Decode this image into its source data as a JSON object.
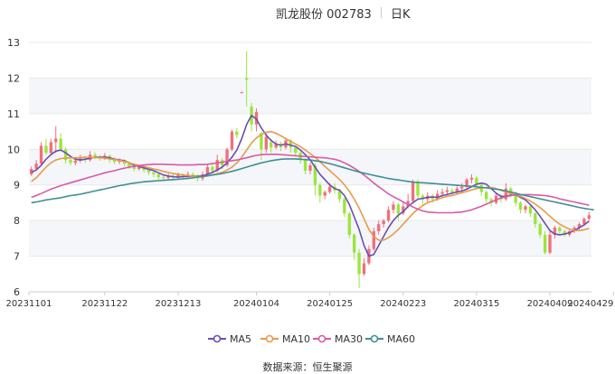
{
  "header": {
    "title": "凯龙股份 002783",
    "period": "日K"
  },
  "source": "数据来源：恒生聚源",
  "colors": {
    "up": "#f0707a",
    "down": "#9ae63c",
    "ma5": "#6a4fb0",
    "ma10": "#e89a4c",
    "ma30": "#d85aa6",
    "ma60": "#3f8f93",
    "grid": "#e8e8e8",
    "band": "#f4f6fa"
  },
  "chart_data": {
    "type": "candlestick",
    "ylim": [
      6,
      13
    ],
    "yticks": [
      6,
      7,
      8,
      9,
      10,
      11,
      12,
      13
    ],
    "xticks": [
      {
        "label": "20231101",
        "index": 0
      },
      {
        "label": "20231122",
        "index": 15
      },
      {
        "label": "20231213",
        "index": 30
      },
      {
        "label": "20240104",
        "index": 46
      },
      {
        "label": "20240125",
        "index": 61
      },
      {
        "label": "20240223",
        "index": 76
      },
      {
        "label": "20240315",
        "index": 91
      },
      {
        "label": "20240409",
        "index": 106
      },
      {
        "label": "20240429",
        "index": 119
      }
    ],
    "candles": [
      [
        9.3,
        9.45,
        9.52,
        9.25
      ],
      [
        9.45,
        9.6,
        9.7,
        9.4
      ],
      [
        9.6,
        10.1,
        10.2,
        9.55
      ],
      [
        10.1,
        9.9,
        10.3,
        9.85
      ],
      [
        9.9,
        10.2,
        10.3,
        9.85
      ],
      [
        10.2,
        10.3,
        10.65,
        9.9
      ],
      [
        10.3,
        10.0,
        10.45,
        9.95
      ],
      [
        10.0,
        9.7,
        10.05,
        9.6
      ],
      [
        9.7,
        9.62,
        9.8,
        9.55
      ],
      [
        9.62,
        9.68,
        9.75,
        9.55
      ],
      [
        9.68,
        9.75,
        9.85,
        9.62
      ],
      [
        9.75,
        9.7,
        9.82,
        9.62
      ],
      [
        9.7,
        9.85,
        9.95,
        9.65
      ],
      [
        9.85,
        9.8,
        9.92,
        9.72
      ],
      [
        9.8,
        9.75,
        9.85,
        9.68
      ],
      [
        9.75,
        9.82,
        9.9,
        9.7
      ],
      [
        9.82,
        9.72,
        9.85,
        9.62
      ],
      [
        9.72,
        9.65,
        9.78,
        9.58
      ],
      [
        9.65,
        9.7,
        9.75,
        9.58
      ],
      [
        9.7,
        9.6,
        9.72,
        9.52
      ],
      [
        9.6,
        9.5,
        9.65,
        9.45
      ],
      [
        9.5,
        9.45,
        9.55,
        9.38
      ],
      [
        9.45,
        9.5,
        9.55,
        9.4
      ],
      [
        9.5,
        9.42,
        9.55,
        9.35
      ],
      [
        9.42,
        9.35,
        9.48,
        9.28
      ],
      [
        9.35,
        9.3,
        9.4,
        9.22
      ],
      [
        9.3,
        9.22,
        9.35,
        9.15
      ],
      [
        9.22,
        9.2,
        9.28,
        9.12
      ],
      [
        9.2,
        9.25,
        9.32,
        9.15
      ],
      [
        9.25,
        9.2,
        9.3,
        9.12
      ],
      [
        9.2,
        9.28,
        9.35,
        9.15
      ],
      [
        9.28,
        9.22,
        9.32,
        9.15
      ],
      [
        9.22,
        9.3,
        9.38,
        9.18
      ],
      [
        9.3,
        9.25,
        9.35,
        9.18
      ],
      [
        9.25,
        9.18,
        9.3,
        9.1
      ],
      [
        9.18,
        9.3,
        9.38,
        9.12
      ],
      [
        9.3,
        9.5,
        9.58,
        9.25
      ],
      [
        9.5,
        9.4,
        9.58,
        9.32
      ],
      [
        9.4,
        9.7,
        9.85,
        9.35
      ],
      [
        9.7,
        9.55,
        9.75,
        9.45
      ],
      [
        9.55,
        10.0,
        10.05,
        9.5
      ],
      [
        10.0,
        10.5,
        10.55,
        9.95
      ],
      [
        10.5,
        10.4,
        10.6,
        10.3
      ],
      [
        11.6,
        11.6,
        11.62,
        11.58
      ],
      [
        12.0,
        11.95,
        12.75,
        11.2
      ],
      [
        11.2,
        10.7,
        11.3,
        10.5
      ],
      [
        10.7,
        11.05,
        11.15,
        10.5
      ],
      [
        10.45,
        10.0,
        10.5,
        9.7
      ],
      [
        10.0,
        10.35,
        10.45,
        9.9
      ],
      [
        10.2,
        10.05,
        10.3,
        9.9
      ],
      [
        10.05,
        10.15,
        10.25,
        10.0
      ],
      [
        10.15,
        10.05,
        10.22,
        9.95
      ],
      [
        10.05,
        10.25,
        10.32,
        10.0
      ],
      [
        10.25,
        10.05,
        10.3,
        9.9
      ],
      [
        10.05,
        9.9,
        10.1,
        9.8
      ],
      [
        9.9,
        9.7,
        9.95,
        9.6
      ],
      [
        9.7,
        9.4,
        9.75,
        9.3
      ],
      [
        9.4,
        9.55,
        9.62,
        9.3
      ],
      [
        9.55,
        9.0,
        9.6,
        8.7
      ],
      [
        9.0,
        8.7,
        9.05,
        8.5
      ],
      [
        8.7,
        8.8,
        8.85,
        8.6
      ],
      [
        8.8,
        8.95,
        9.05,
        8.75
      ],
      [
        8.95,
        8.85,
        9.05,
        8.75
      ],
      [
        8.85,
        8.6,
        8.9,
        8.5
      ],
      [
        8.6,
        8.2,
        8.65,
        8.1
      ],
      [
        8.2,
        7.6,
        8.25,
        7.5
      ],
      [
        7.6,
        7.1,
        7.65,
        6.9
      ],
      [
        7.1,
        6.5,
        7.2,
        6.1
      ],
      [
        6.5,
        6.8,
        6.95,
        6.45
      ],
      [
        6.8,
        7.2,
        7.3,
        6.75
      ],
      [
        7.2,
        7.7,
        7.8,
        7.15
      ],
      [
        7.7,
        7.9,
        8.0,
        7.6
      ],
      [
        7.9,
        8.0,
        8.05,
        7.8
      ],
      [
        8.0,
        8.3,
        8.4,
        7.95
      ],
      [
        8.3,
        8.45,
        8.55,
        8.2
      ],
      [
        8.45,
        8.2,
        8.5,
        8.0
      ],
      [
        8.2,
        8.4,
        8.5,
        8.15
      ],
      [
        8.4,
        8.55,
        8.75,
        8.35
      ],
      [
        8.55,
        9.1,
        9.15,
        8.5
      ],
      [
        9.1,
        8.7,
        9.15,
        8.6
      ],
      [
        8.7,
        8.6,
        8.75,
        8.45
      ],
      [
        8.6,
        8.7,
        8.8,
        8.5
      ],
      [
        8.7,
        8.6,
        8.75,
        8.5
      ],
      [
        8.6,
        8.75,
        8.85,
        8.55
      ],
      [
        8.75,
        8.8,
        8.9,
        8.65
      ],
      [
        8.8,
        8.85,
        8.95,
        8.72
      ],
      [
        8.85,
        8.8,
        8.92,
        8.7
      ],
      [
        8.8,
        8.9,
        9.0,
        8.75
      ],
      [
        8.9,
        8.95,
        9.05,
        8.8
      ],
      [
        8.95,
        9.15,
        9.2,
        8.9
      ],
      [
        9.15,
        9.2,
        9.3,
        9.05
      ],
      [
        9.2,
        9.0,
        9.25,
        8.9
      ],
      [
        9.0,
        8.8,
        9.05,
        8.7
      ],
      [
        8.8,
        8.6,
        8.85,
        8.5
      ],
      [
        8.6,
        8.5,
        8.65,
        8.4
      ],
      [
        8.5,
        8.7,
        8.8,
        8.45
      ],
      [
        8.7,
        8.6,
        8.75,
        8.5
      ],
      [
        8.6,
        8.9,
        9.05,
        8.55
      ],
      [
        8.9,
        8.75,
        8.95,
        8.65
      ],
      [
        8.75,
        8.5,
        8.8,
        8.4
      ],
      [
        8.5,
        8.3,
        8.55,
        8.2
      ],
      [
        8.3,
        8.4,
        8.45,
        8.2
      ],
      [
        8.4,
        8.2,
        8.45,
        8.1
      ],
      [
        8.2,
        7.9,
        8.25,
        7.8
      ],
      [
        7.9,
        7.6,
        7.95,
        7.5
      ],
      [
        7.6,
        7.1,
        7.7,
        7.05
      ],
      [
        7.1,
        7.6,
        7.7,
        7.05
      ],
      [
        7.6,
        7.8,
        7.85,
        7.5
      ],
      [
        7.8,
        7.7,
        7.85,
        7.6
      ],
      [
        7.7,
        7.6,
        7.75,
        7.55
      ],
      [
        7.6,
        7.7,
        7.75,
        7.55
      ],
      [
        7.7,
        7.8,
        7.85,
        7.65
      ],
      [
        7.8,
        7.9,
        7.95,
        7.75
      ],
      [
        7.9,
        8.05,
        8.1,
        7.85
      ],
      [
        8.05,
        8.15,
        8.25,
        8.0
      ]
    ],
    "series": [
      {
        "name": "MA5",
        "values": [
          9.35,
          9.42,
          9.55,
          9.72,
          9.85,
          9.95,
          9.98,
          9.9,
          9.8,
          9.72,
          9.7,
          9.72,
          9.75,
          9.78,
          9.78,
          9.78,
          9.76,
          9.72,
          9.7,
          9.68,
          9.62,
          9.55,
          9.52,
          9.48,
          9.44,
          9.4,
          9.34,
          9.28,
          9.25,
          9.23,
          9.22,
          9.23,
          9.24,
          9.25,
          9.25,
          9.26,
          9.3,
          9.35,
          9.42,
          9.5,
          9.62,
          9.78,
          9.98,
          10.3,
          10.7,
          10.95,
          10.85,
          10.6,
          10.4,
          10.25,
          10.15,
          10.12,
          10.15,
          10.12,
          10.08,
          9.98,
          9.85,
          9.7,
          9.5,
          9.3,
          9.15,
          9.0,
          8.9,
          8.85,
          8.7,
          8.45,
          8.1,
          7.75,
          7.3,
          7.0,
          7.05,
          7.3,
          7.55,
          7.8,
          8.0,
          8.15,
          8.25,
          8.4,
          8.5,
          8.6,
          8.62,
          8.65,
          8.66,
          8.65,
          8.7,
          8.73,
          8.77,
          8.8,
          8.83,
          8.88,
          8.95,
          9.02,
          9.05,
          9.02,
          8.9,
          8.77,
          8.68,
          8.68,
          8.72,
          8.72,
          8.65,
          8.58,
          8.45,
          8.3,
          8.12,
          7.92,
          7.72,
          7.62,
          7.6,
          7.62,
          7.66,
          7.72,
          7.8,
          7.88,
          7.98
        ]
      },
      {
        "name": "MA10",
        "values": [
          9.1,
          9.2,
          9.35,
          9.5,
          9.62,
          9.7,
          9.74,
          9.75,
          9.76,
          9.76,
          9.77,
          9.78,
          9.78,
          9.77,
          9.76,
          9.75,
          9.73,
          9.71,
          9.69,
          9.66,
          9.62,
          9.58,
          9.55,
          9.52,
          9.48,
          9.45,
          9.42,
          9.38,
          9.35,
          9.32,
          9.3,
          9.28,
          9.26,
          9.25,
          9.24,
          9.24,
          9.25,
          9.28,
          9.31,
          9.35,
          9.42,
          9.5,
          9.62,
          9.78,
          9.98,
          10.18,
          10.32,
          10.42,
          10.48,
          10.5,
          10.45,
          10.38,
          10.3,
          10.22,
          10.15,
          10.07,
          9.98,
          9.88,
          9.78,
          9.65,
          9.52,
          9.4,
          9.28,
          9.15,
          9.0,
          8.82,
          8.6,
          8.35,
          8.05,
          7.75,
          7.55,
          7.45,
          7.45,
          7.52,
          7.62,
          7.75,
          7.9,
          8.05,
          8.2,
          8.32,
          8.42,
          8.5,
          8.55,
          8.6,
          8.64,
          8.68,
          8.7,
          8.74,
          8.78,
          8.82,
          8.86,
          8.9,
          8.92,
          8.93,
          8.93,
          8.9,
          8.85,
          8.8,
          8.76,
          8.72,
          8.68,
          8.62,
          8.55,
          8.46,
          8.36,
          8.25,
          8.12,
          8.0,
          7.9,
          7.82,
          7.76,
          7.72,
          7.72,
          7.74,
          7.78
        ]
      },
      {
        "name": "MA30",
        "values": [
          8.65,
          8.7,
          8.76,
          8.82,
          8.88,
          8.93,
          8.98,
          9.02,
          9.06,
          9.1,
          9.14,
          9.18,
          9.22,
          9.26,
          9.3,
          9.34,
          9.37,
          9.4,
          9.44,
          9.47,
          9.5,
          9.52,
          9.54,
          9.56,
          9.57,
          9.58,
          9.58,
          9.58,
          9.57,
          9.57,
          9.56,
          9.56,
          9.56,
          9.56,
          9.57,
          9.57,
          9.58,
          9.6,
          9.62,
          9.64,
          9.66,
          9.68,
          9.7,
          9.73,
          9.76,
          9.8,
          9.83,
          9.85,
          9.86,
          9.86,
          9.86,
          9.85,
          9.84,
          9.83,
          9.82,
          9.81,
          9.8,
          9.79,
          9.78,
          9.77,
          9.76,
          9.74,
          9.72,
          9.68,
          9.62,
          9.55,
          9.47,
          9.38,
          9.28,
          9.17,
          9.05,
          8.95,
          8.85,
          8.75,
          8.67,
          8.6,
          8.52,
          8.45,
          8.38,
          8.32,
          8.27,
          8.24,
          8.23,
          8.22,
          8.22,
          8.22,
          8.22,
          8.23,
          8.24,
          8.27,
          8.3,
          8.35,
          8.4,
          8.46,
          8.52,
          8.58,
          8.63,
          8.67,
          8.7,
          8.72,
          8.73,
          8.73,
          8.73,
          8.72,
          8.71,
          8.7,
          8.68,
          8.65,
          8.61,
          8.58,
          8.55,
          8.52,
          8.49,
          8.46,
          8.43
        ]
      },
      {
        "name": "MA60",
        "values": [
          8.5,
          8.52,
          8.55,
          8.58,
          8.6,
          8.62,
          8.64,
          8.67,
          8.7,
          8.72,
          8.74,
          8.77,
          8.8,
          8.83,
          8.86,
          8.89,
          8.92,
          8.95,
          8.98,
          9.0,
          9.03,
          9.05,
          9.07,
          9.09,
          9.1,
          9.11,
          9.12,
          9.13,
          9.14,
          9.15,
          9.16,
          9.17,
          9.18,
          9.2,
          9.22,
          9.24,
          9.26,
          9.28,
          9.3,
          9.32,
          9.35,
          9.38,
          9.42,
          9.46,
          9.5,
          9.54,
          9.58,
          9.62,
          9.65,
          9.68,
          9.7,
          9.72,
          9.73,
          9.73,
          9.73,
          9.72,
          9.71,
          9.7,
          9.68,
          9.66,
          9.63,
          9.6,
          9.56,
          9.52,
          9.48,
          9.44,
          9.4,
          9.36,
          9.33,
          9.3,
          9.27,
          9.24,
          9.21,
          9.18,
          9.16,
          9.14,
          9.12,
          9.1,
          9.08,
          9.07,
          9.06,
          9.05,
          9.04,
          9.03,
          9.02,
          9.01,
          9.0,
          8.99,
          8.98,
          8.97,
          8.96,
          8.95,
          8.93,
          8.92,
          8.9,
          8.88,
          8.86,
          8.83,
          8.8,
          8.77,
          8.73,
          8.7,
          8.67,
          8.64,
          8.61,
          8.58,
          8.55,
          8.52,
          8.49,
          8.46,
          8.43,
          8.4,
          8.37,
          8.34,
          8.32,
          8.3
        ]
      }
    ]
  },
  "legend": [
    {
      "name": "MA5",
      "color": "#6a4fb0"
    },
    {
      "name": "MA10",
      "color": "#e89a4c"
    },
    {
      "name": "MA30",
      "color": "#d85aa6"
    },
    {
      "name": "MA60",
      "color": "#3f8f93"
    }
  ]
}
